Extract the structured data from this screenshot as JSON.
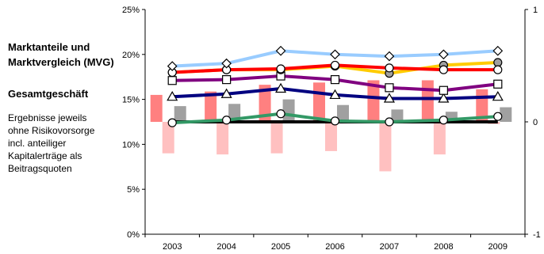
{
  "side": {
    "title_line1": "Marktanteile und",
    "title_line2": "Marktvergleich (MVG)",
    "subtitle": "Gesamtgeschäft",
    "desc_lines": [
      "Ergebnisse jeweils",
      "ohne Risikovorsorge",
      "incl. anteiliger",
      "Kapitalerträge als",
      "Beitragsquoten"
    ]
  },
  "chart_data": {
    "type": "line",
    "categories": [
      "2003",
      "2004",
      "2005",
      "2006",
      "2007",
      "2008",
      "2009"
    ],
    "y_left": {
      "ylim": [
        0,
        25
      ],
      "ticks": [
        0,
        5,
        10,
        15,
        20,
        25
      ],
      "tick_labels": [
        "0%",
        "5%",
        "10%",
        "15%",
        "20%",
        "25%"
      ]
    },
    "y_right": {
      "ylim": [
        -1,
        1
      ],
      "ticks": [
        -1,
        0,
        1
      ],
      "tick_labels": [
        "-1",
        "0",
        "1"
      ]
    },
    "grid": false,
    "legend": "none",
    "series": [
      {
        "color": "#99ccff",
        "marker": "diamond",
        "values": [
          18.7,
          19.0,
          20.4,
          20.0,
          19.8,
          20.0,
          20.4
        ]
      },
      {
        "color": "#ffcc00",
        "marker": "circle-grey",
        "values": [
          18.0,
          18.3,
          18.3,
          18.7,
          17.9,
          18.8,
          19.1
        ]
      },
      {
        "color": "#ff0000",
        "marker": "circle",
        "values": [
          18.0,
          18.3,
          18.4,
          18.8,
          18.5,
          18.3,
          18.3
        ]
      },
      {
        "color": "#800080",
        "marker": "square",
        "values": [
          17.1,
          17.2,
          17.6,
          17.2,
          16.3,
          16.0,
          16.7
        ]
      },
      {
        "color": "#000080",
        "marker": "triangle",
        "values": [
          15.3,
          15.6,
          16.2,
          15.5,
          15.1,
          15.1,
          15.3
        ]
      },
      {
        "color": "#339966",
        "marker": "circle",
        "values": [
          12.4,
          12.7,
          13.4,
          12.6,
          12.5,
          12.7,
          13.1
        ]
      },
      {
        "color": "#000000",
        "marker": "none",
        "values": [
          12.5,
          12.5,
          12.5,
          12.5,
          12.5,
          12.5,
          12.5
        ]
      }
    ],
    "bars_right_axis": [
      {
        "color": "#ff8080",
        "values": [
          0.24,
          0.27,
          0.33,
          0.35,
          0.37,
          0.37,
          0.29
        ]
      },
      {
        "color": "#ffc0c0",
        "values": [
          -0.28,
          -0.29,
          -0.28,
          -0.26,
          -0.44,
          -0.29,
          -0.02
        ]
      },
      {
        "color": "#a0a0a0",
        "values": [
          0.14,
          0.16,
          0.2,
          0.15,
          0.11,
          0.09,
          0.13
        ]
      }
    ]
  }
}
